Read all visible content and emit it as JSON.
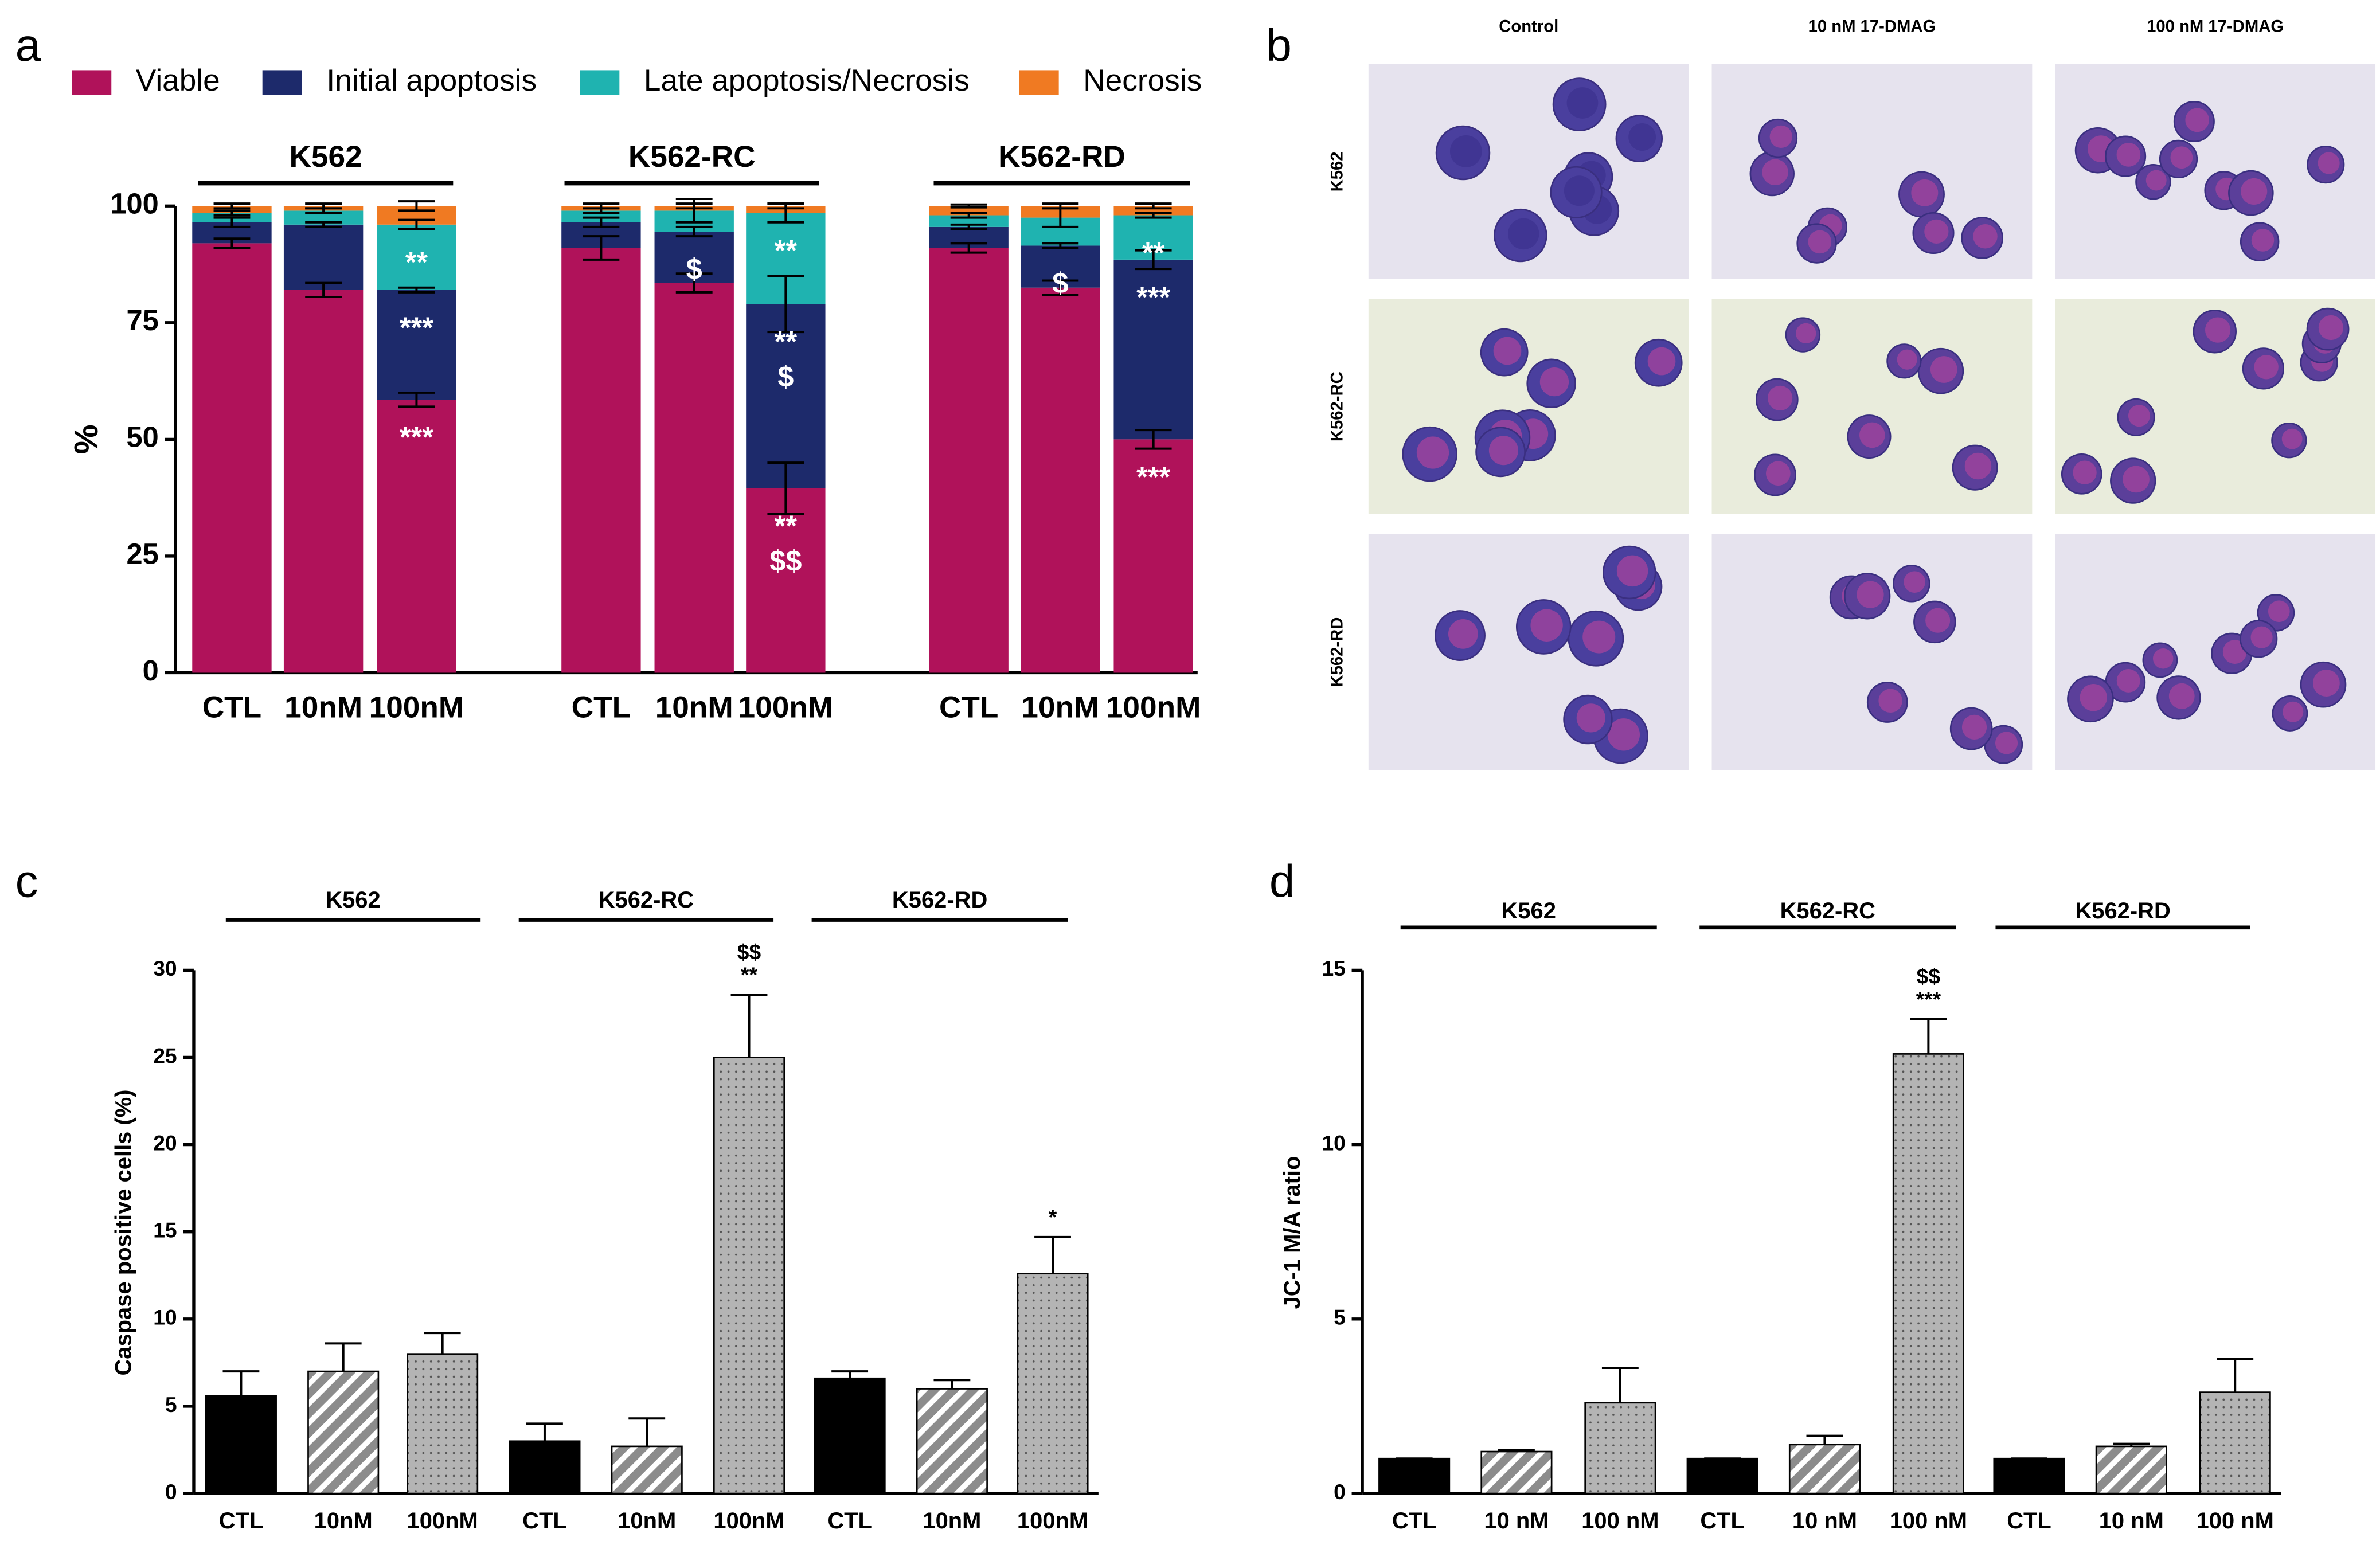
{
  "panel_labels": [
    "a",
    "b",
    "c",
    "d"
  ],
  "chart_data": [
    {
      "type": "stacked_bar",
      "ylabel": "%",
      "group_names": [
        "K562",
        "K562-RC",
        "K562-RD"
      ],
      "categories": [
        "CTL",
        "10nM",
        "100nM",
        "CTL",
        "10nM",
        "100nM",
        "CTL",
        "10nM",
        "100nM"
      ],
      "ylim": [
        0,
        100
      ],
      "yticks": [
        0,
        25,
        50,
        75,
        100
      ],
      "series": [
        {
          "name": "Viable",
          "color": "#b0125a",
          "values": [
            92,
            82,
            58.5,
            91,
            83.5,
            39.5,
            91,
            82.5,
            50
          ],
          "errors": [
            1,
            1.5,
            1.5,
            2.5,
            2,
            5.5,
            1,
            1.5,
            2
          ],
          "significance": [
            null,
            null,
            [
              "***"
            ],
            null,
            null,
            [
              "**",
              "$$"
            ],
            null,
            null,
            [
              "***"
            ]
          ]
        },
        {
          "name": "Initial apoptosis",
          "color": "#1d2a6b",
          "values": [
            4.5,
            14,
            23.5,
            5.5,
            11,
            39.5,
            4.5,
            9,
            38.5
          ],
          "errors": [
            1,
            0.5,
            0.5,
            1,
            1,
            6,
            0.5,
            0.5,
            2
          ],
          "significance": [
            null,
            null,
            [
              "***"
            ],
            null,
            [
              "$"
            ],
            [
              "**",
              "$"
            ],
            null,
            [
              "$"
            ],
            [
              "***"
            ]
          ]
        },
        {
          "name": "Late apoptosis/Necrosis",
          "color": "#1fb3b0",
          "values": [
            2,
            3,
            14,
            2.5,
            4.5,
            19.5,
            2.5,
            6,
            9.5
          ],
          "errors": [
            0.5,
            0.5,
            1,
            0.5,
            2.5,
            2,
            0.5,
            2,
            0.5
          ],
          "significance": [
            null,
            null,
            [
              "**"
            ],
            null,
            null,
            [
              "**"
            ],
            null,
            null,
            [
              "**"
            ]
          ]
        },
        {
          "name": "Necrosis",
          "color": "#f07a22",
          "values": [
            1.5,
            1,
            4,
            1,
            1,
            1.5,
            2,
            2.5,
            2
          ],
          "errors": [
            0.5,
            0.5,
            1,
            0.5,
            0.5,
            0.5,
            0.3,
            0.5,
            0.5
          ],
          "significance": [
            null,
            null,
            null,
            null,
            null,
            null,
            null,
            null,
            null
          ]
        }
      ]
    },
    {
      "type": "bar",
      "ylabel": "Caspase positive cells (%)",
      "group_names": [
        "K562",
        "K562-RC",
        "K562-RD"
      ],
      "categories": [
        "CTL",
        "10nM",
        "100nM",
        "CTL",
        "10nM",
        "100nM",
        "CTL",
        "10nM",
        "100nM"
      ],
      "values": [
        5.6,
        7,
        8,
        3,
        2.7,
        25,
        6.6,
        6,
        12.6
      ],
      "errors": [
        1.4,
        1.6,
        1.2,
        1,
        1.6,
        3.6,
        0.4,
        0.5,
        2.1
      ],
      "fills": [
        "solid",
        "hatched",
        "dotted",
        "solid",
        "hatched",
        "dotted",
        "solid",
        "hatched",
        "dotted"
      ],
      "color": "#000000",
      "significance": [
        null,
        null,
        null,
        null,
        null,
        [
          "$$",
          "**"
        ],
        null,
        null,
        [
          "*"
        ]
      ],
      "ylim": [
        0,
        30
      ],
      "yticks": [
        0,
        5,
        10,
        15,
        20,
        25,
        30
      ]
    },
    {
      "type": "bar",
      "ylabel": "JC-1 M/A ratio",
      "group_names": [
        "K562",
        "K562-RC",
        "K562-RD"
      ],
      "categories": [
        "CTL",
        "10 nM",
        "100 nM",
        "CTL",
        "10 nM",
        "100 nM",
        "CTL",
        "10 nM",
        "100 nM"
      ],
      "values": [
        1,
        1.2,
        2.6,
        1,
        1.4,
        12.6,
        1,
        1.35,
        2.9
      ],
      "errors": [
        0,
        0.05,
        1,
        0,
        0.25,
        1,
        0,
        0.07,
        0.95
      ],
      "fills": [
        "solid",
        "hatched",
        "dotted",
        "solid",
        "hatched",
        "dotted",
        "solid",
        "hatched",
        "dotted"
      ],
      "color": "#000000",
      "significance": [
        null,
        null,
        null,
        null,
        null,
        [
          "$$",
          "***"
        ],
        null,
        null,
        null
      ],
      "ylim": [
        0,
        15
      ],
      "yticks": [
        0,
        5,
        10,
        15
      ]
    }
  ],
  "micrographs": {
    "columns": [
      "Control",
      "10 nM 17-DMAG",
      "100 nM 17-DMAG"
    ],
    "rows": [
      "K562",
      "K562-RC",
      "K562-RD"
    ]
  }
}
